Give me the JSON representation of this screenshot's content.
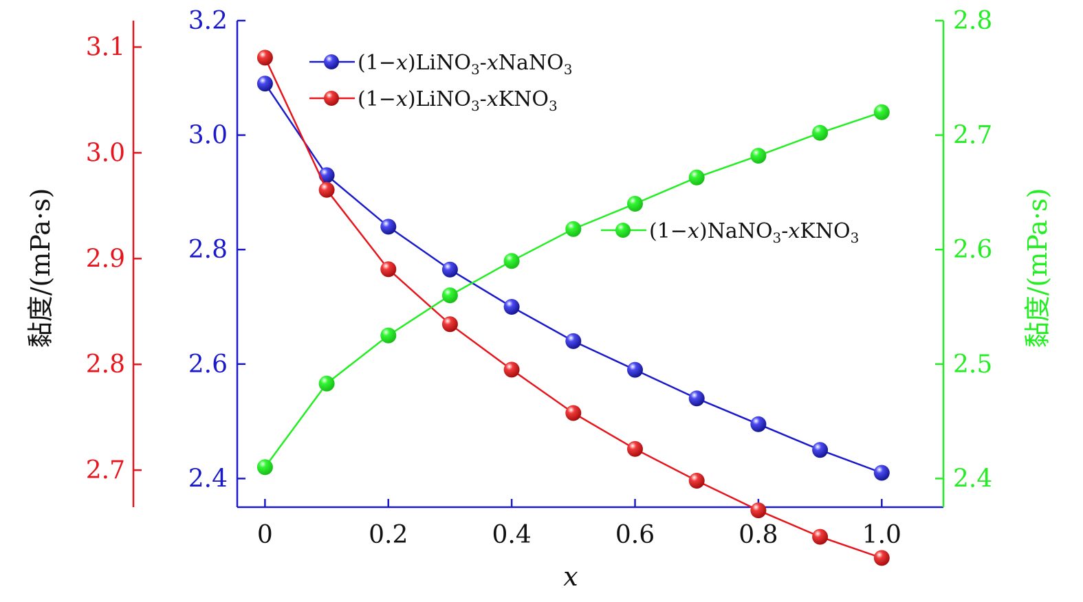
{
  "chart_data": {
    "type": "line",
    "x": [
      0,
      0.1,
      0.2,
      0.3,
      0.4,
      0.5,
      0.6,
      0.7,
      0.8,
      0.9,
      1.0
    ],
    "xlabel": "x",
    "x_ticks": [
      0,
      0.2,
      0.4,
      0.6,
      0.8,
      1.0
    ],
    "x_tick_labels": [
      "0",
      "0.2",
      "0.4",
      "0.6",
      "0.8",
      "1.0"
    ],
    "xlim": [
      -0.045,
      1.1
    ],
    "axes": {
      "left_outer": {
        "color": "#e8141c",
        "label": "黏度/(mPa·s)",
        "ylim": [
          2.665,
          3.125
        ],
        "ticks": [
          2.7,
          2.8,
          2.9,
          3.0,
          3.1
        ],
        "tick_labels": [
          "2.7",
          "2.8",
          "2.9",
          "3.0",
          "3.1"
        ]
      },
      "left_inner": {
        "color": "#1a1acc",
        "ylim": [
          2.35,
          3.2
        ],
        "ticks": [
          2.4,
          2.6,
          2.8,
          3.0,
          3.2
        ],
        "tick_labels": [
          "2.4",
          "2.6",
          "2.8",
          "3.0",
          "3.2"
        ]
      },
      "right": {
        "color": "#22ee22",
        "label": "黏度/(mPa·s)",
        "ylim": [
          2.375,
          2.8
        ],
        "ticks": [
          2.4,
          2.5,
          2.6,
          2.7,
          2.8
        ],
        "tick_labels": [
          "2.4",
          "2.5",
          "2.6",
          "2.7",
          "2.8"
        ]
      }
    },
    "series": [
      {
        "name_prefix": "(1−",
        "name_var1": "x",
        "name_mid": ")LiNO",
        "name_sub1": "3",
        "name_dash": "-",
        "name_var2": "x",
        "name_end": "NaNO",
        "name_sub2": "3",
        "axis": "left_inner",
        "color": "#1a1acc",
        "values": [
          3.09,
          2.93,
          2.84,
          2.765,
          2.7,
          2.64,
          2.59,
          2.54,
          2.495,
          2.45,
          2.41
        ]
      },
      {
        "name_prefix": "(1−",
        "name_var1": "x",
        "name_mid": ")LiNO",
        "name_sub1": "3",
        "name_dash": "-",
        "name_var2": "x",
        "name_end": "KNO",
        "name_sub2": "3",
        "axis": "left_outer",
        "color": "#e8141c",
        "values": [
          3.09,
          2.965,
          2.89,
          2.838,
          2.795,
          2.754,
          2.72,
          2.69,
          2.662,
          2.637,
          2.617
        ]
      },
      {
        "name_prefix": "(1−",
        "name_var1": "x",
        "name_mid": ")NaNO",
        "name_sub1": "3",
        "name_dash": "-",
        "name_var2": "x",
        "name_end": "KNO",
        "name_sub2": "3",
        "axis": "right",
        "color": "#22ee22",
        "values": [
          2.41,
          2.483,
          2.525,
          2.56,
          2.59,
          2.618,
          2.64,
          2.663,
          2.682,
          2.702,
          2.72
        ]
      }
    ]
  }
}
